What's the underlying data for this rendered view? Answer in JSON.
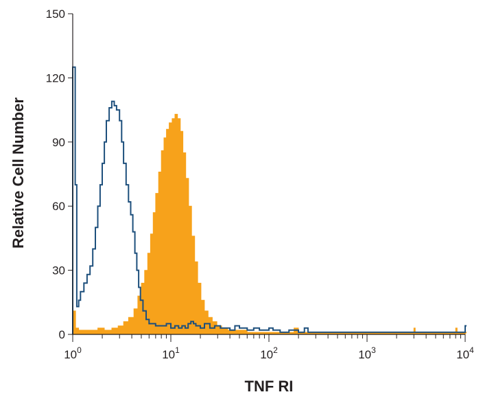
{
  "chart_data": {
    "type": "area",
    "title": "",
    "xlabel": "TNF RI",
    "ylabel": "Relative Cell Number",
    "x_scale": "log",
    "xlim": [
      1,
      10000
    ],
    "ylim": [
      0,
      150
    ],
    "x_ticks": [
      {
        "base": "10",
        "exp": "0"
      },
      {
        "base": "10",
        "exp": "1"
      },
      {
        "base": "10",
        "exp": "2"
      },
      {
        "base": "10",
        "exp": "3"
      },
      {
        "base": "10",
        "exp": "4"
      }
    ],
    "y_ticks": [
      "0",
      "30",
      "60",
      "90",
      "120",
      "150"
    ],
    "grid": false,
    "legend": "none",
    "series": [
      {
        "style": "filled",
        "color": "#f7a21b",
        "points": [
          [
            1.0,
            11
          ],
          [
            1.07,
            3
          ],
          [
            1.15,
            2
          ],
          [
            1.3,
            2
          ],
          [
            1.5,
            2
          ],
          [
            1.8,
            3
          ],
          [
            2.1,
            2
          ],
          [
            2.5,
            3
          ],
          [
            2.9,
            4
          ],
          [
            3.3,
            6
          ],
          [
            3.7,
            8
          ],
          [
            4.2,
            12
          ],
          [
            4.6,
            18
          ],
          [
            5.0,
            24
          ],
          [
            5.4,
            30
          ],
          [
            5.8,
            38
          ],
          [
            6.2,
            47
          ],
          [
            6.6,
            57
          ],
          [
            7.0,
            66
          ],
          [
            7.5,
            76
          ],
          [
            8.0,
            86
          ],
          [
            8.5,
            92
          ],
          [
            9.0,
            96
          ],
          [
            9.6,
            99
          ],
          [
            10.3,
            101
          ],
          [
            11.0,
            103
          ],
          [
            11.7,
            101
          ],
          [
            12.5,
            95
          ],
          [
            13.3,
            85
          ],
          [
            14.2,
            73
          ],
          [
            15.2,
            60
          ],
          [
            16.3,
            46
          ],
          [
            17.5,
            34
          ],
          [
            18.8,
            24
          ],
          [
            20.3,
            16
          ],
          [
            22.0,
            11
          ],
          [
            24.0,
            8
          ],
          [
            26.5,
            6
          ],
          [
            29.5,
            4
          ],
          [
            33,
            3
          ],
          [
            38,
            2
          ],
          [
            45,
            2
          ],
          [
            60,
            1
          ],
          [
            100,
            1
          ],
          [
            160,
            1
          ],
          [
            180,
            3
          ],
          [
            200,
            1
          ],
          [
            500,
            1
          ],
          [
            1000,
            1
          ],
          [
            2000,
            1
          ],
          [
            2950,
            1
          ],
          [
            3000,
            3
          ],
          [
            3100,
            1
          ],
          [
            5000,
            1
          ],
          [
            7800,
            1
          ],
          [
            8000,
            3
          ],
          [
            8300,
            1
          ],
          [
            10000,
            1
          ]
        ]
      },
      {
        "style": "outline",
        "color": "#1d4f7c",
        "points": [
          [
            1.0,
            125
          ],
          [
            1.06,
            70
          ],
          [
            1.1,
            13
          ],
          [
            1.15,
            16
          ],
          [
            1.2,
            20
          ],
          [
            1.3,
            24
          ],
          [
            1.4,
            28
          ],
          [
            1.5,
            32
          ],
          [
            1.6,
            40
          ],
          [
            1.7,
            50
          ],
          [
            1.8,
            60
          ],
          [
            1.9,
            70
          ],
          [
            2.0,
            80
          ],
          [
            2.1,
            90
          ],
          [
            2.2,
            100
          ],
          [
            2.35,
            106
          ],
          [
            2.5,
            109
          ],
          [
            2.65,
            107
          ],
          [
            2.8,
            105
          ],
          [
            3.0,
            100
          ],
          [
            3.15,
            90
          ],
          [
            3.3,
            80
          ],
          [
            3.5,
            70
          ],
          [
            3.7,
            62
          ],
          [
            3.9,
            56
          ],
          [
            4.1,
            48
          ],
          [
            4.3,
            38
          ],
          [
            4.5,
            30
          ],
          [
            4.7,
            22
          ],
          [
            4.9,
            16
          ],
          [
            5.2,
            11
          ],
          [
            5.6,
            7
          ],
          [
            6.0,
            5
          ],
          [
            6.5,
            5
          ],
          [
            7.0,
            4
          ],
          [
            8,
            4
          ],
          [
            9,
            5
          ],
          [
            10,
            3
          ],
          [
            11,
            4
          ],
          [
            12,
            3
          ],
          [
            13,
            4
          ],
          [
            14,
            3
          ],
          [
            15,
            5
          ],
          [
            16,
            6
          ],
          [
            17,
            5
          ],
          [
            18,
            4
          ],
          [
            20,
            3
          ],
          [
            22,
            5
          ],
          [
            25,
            3
          ],
          [
            28,
            4
          ],
          [
            32,
            3
          ],
          [
            36,
            3
          ],
          [
            40,
            2
          ],
          [
            45,
            4
          ],
          [
            50,
            3
          ],
          [
            55,
            3
          ],
          [
            60,
            2
          ],
          [
            70,
            3
          ],
          [
            80,
            2
          ],
          [
            90,
            2
          ],
          [
            100,
            3
          ],
          [
            110,
            2
          ],
          [
            130,
            1
          ],
          [
            160,
            2
          ],
          [
            200,
            1
          ],
          [
            230,
            3
          ],
          [
            250,
            1
          ],
          [
            400,
            1
          ],
          [
            1000,
            1
          ],
          [
            3000,
            1
          ],
          [
            8000,
            1
          ],
          [
            9800,
            1
          ],
          [
            10000,
            4
          ]
        ]
      }
    ]
  }
}
